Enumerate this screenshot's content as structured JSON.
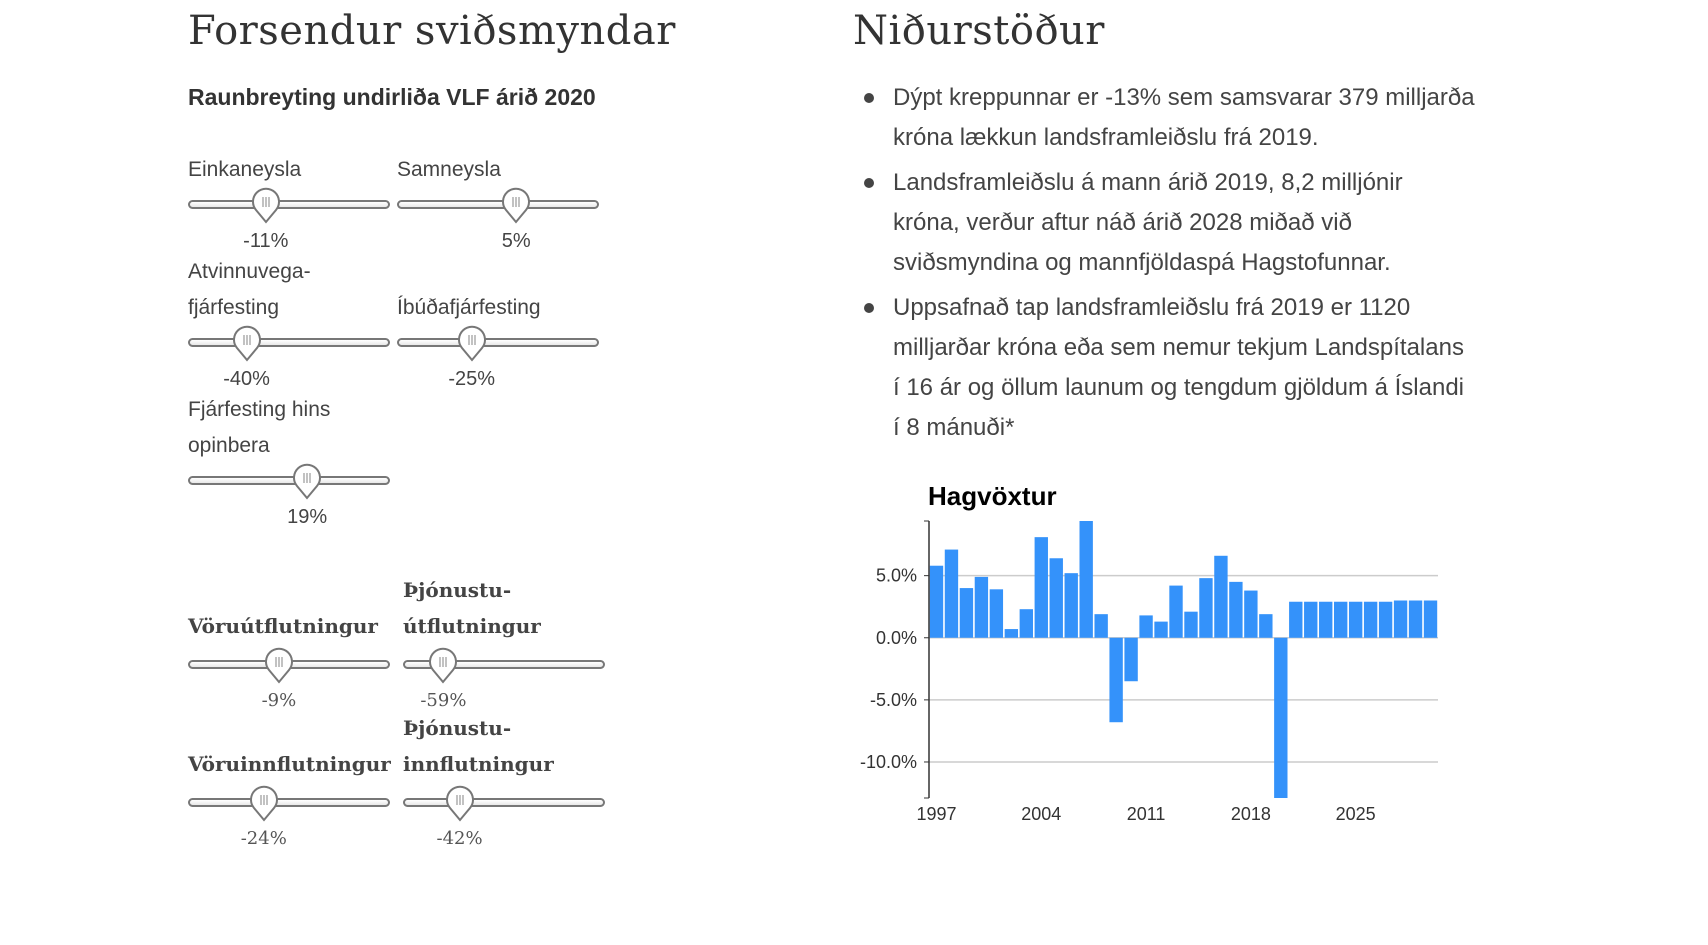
{
  "left": {
    "title": "Forsendur sviðsmyndar",
    "subtitle": "Raunbreyting undirliða VLF árið 2020",
    "sliders": [
      {
        "label_lines": [
          "Einkaneysla"
        ],
        "value": "-11%",
        "position": 0.385
      },
      {
        "label_lines": [
          "Samneysla"
        ],
        "value": "5%",
        "position": 0.59
      },
      {
        "label_lines": [
          "Atvinnuvega-",
          "fjárfesting"
        ],
        "value": "-40%",
        "position": 0.29
      },
      {
        "label_lines": [
          "Íbúðafjárfesting"
        ],
        "value": "-25%",
        "position": 0.37
      },
      {
        "label_lines": [
          "Fjárfesting hins",
          "opinbera"
        ],
        "value": "19%",
        "position": 0.59
      },
      {
        "label_lines": [
          "Vöruútflutningur"
        ],
        "value": "-9%",
        "position": 0.45
      },
      {
        "label_lines": [
          "Þjónustu-",
          "útflutningur"
        ],
        "value": "-59%",
        "position": 0.2
      },
      {
        "label_lines": [
          "Vöruinnflutningur"
        ],
        "value": "-24%",
        "position": 0.375
      },
      {
        "label_lines": [
          "Þjónustu-",
          "innflutningur"
        ],
        "value": "-42%",
        "position": 0.28
      }
    ]
  },
  "right": {
    "title": "Niðurstöður",
    "bullets": [
      "Dýpt kreppunnar er -13% sem samsvarar 379 milljarða króna lækkun landsframleiðslu frá 2019.",
      "Landsframleiðslu á mann árið 2019, 8,2 milljónir króna, verður aftur náð árið 2028 miðað við sviðsmyndina og mannfjöldaspá Hagstofunnar.",
      "Uppsafnað tap landsframleiðslu frá 2019 er 1120 milljarðar króna eða sem nemur tekjum Landspítalans í 16 ár og öllum launum og tengdum gjöldum á Íslandi í 8 mánuði*"
    ]
  },
  "chart_data": {
    "type": "bar",
    "title": "Hagvöxtur",
    "xlabel": "",
    "ylabel": "",
    "x": [
      1997,
      1998,
      1999,
      2000,
      2001,
      2002,
      2003,
      2004,
      2005,
      2006,
      2007,
      2008,
      2009,
      2010,
      2011,
      2012,
      2013,
      2014,
      2015,
      2016,
      2017,
      2018,
      2019,
      2020,
      2021,
      2022,
      2023,
      2024,
      2025,
      2026,
      2027,
      2028,
      2029,
      2030
    ],
    "values": [
      5.8,
      7.1,
      4.0,
      4.9,
      3.9,
      0.7,
      2.3,
      8.1,
      6.4,
      5.2,
      9.4,
      1.9,
      -6.8,
      -3.5,
      1.8,
      1.3,
      4.2,
      2.1,
      4.8,
      6.6,
      4.5,
      3.8,
      1.9,
      -12.9,
      2.9,
      2.9,
      2.9,
      2.9,
      2.9,
      2.9,
      2.9,
      3.0,
      3.0,
      3.0
    ],
    "ylim": [
      -12.9,
      9.4
    ],
    "yticks": [
      5.0,
      0.0,
      -5.0,
      -10.0
    ],
    "ytick_labels": [
      "5.0%",
      "0.0%",
      "-5.0%",
      "-10.0%"
    ],
    "xtick_labels": [
      "1997",
      "2004",
      "2011",
      "2018",
      "2025"
    ],
    "grid": true,
    "bar_color": "#3492fa"
  }
}
